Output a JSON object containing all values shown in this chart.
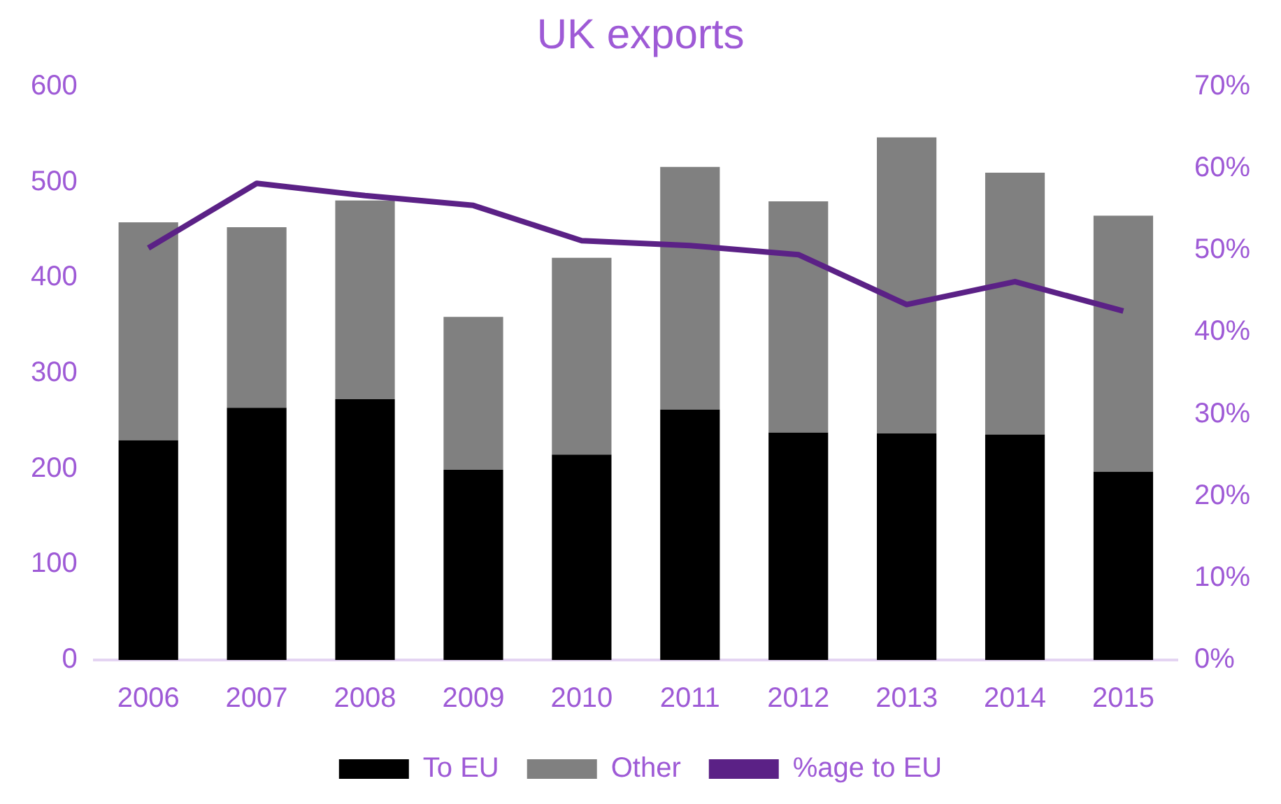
{
  "chart_data": {
    "type": "bar",
    "title": "UK exports",
    "stacked": true,
    "legend": "bottom",
    "grid": false,
    "categories": [
      "2006",
      "2007",
      "2008",
      "2009",
      "2010",
      "2011",
      "2012",
      "2013",
      "2014",
      "2015"
    ],
    "series": [
      {
        "name": "To EU",
        "color": "#000000",
        "values": [
          230,
          264,
          273,
          199,
          215,
          262,
          238,
          237,
          236,
          197
        ]
      },
      {
        "name": "Other",
        "color": "#808080",
        "values": [
          228,
          189,
          208,
          160,
          206,
          254,
          242,
          310,
          274,
          268
        ]
      },
      {
        "name": "%age to EU",
        "type": "line",
        "axis": "y2",
        "color": "#5b2186",
        "marker": "none",
        "values": [
          50.3,
          58.2,
          56.7,
          55.5,
          51.2,
          50.6,
          49.5,
          43.4,
          46.2,
          42.6
        ]
      }
    ],
    "ylim": [
      0,
      600
    ],
    "yticks": [
      0,
      100,
      200,
      300,
      400,
      500,
      600
    ],
    "y2lim": [
      0,
      70
    ],
    "y2ticks": [
      {
        "value": 0,
        "label": "0%"
      },
      {
        "value": 10,
        "label": "10%"
      },
      {
        "value": 20,
        "label": "20%"
      },
      {
        "value": 30,
        "label": "30%"
      },
      {
        "value": 40,
        "label": "40%"
      },
      {
        "value": 50,
        "label": "50%"
      },
      {
        "value": 60,
        "label": "60%"
      },
      {
        "value": 70,
        "label": "70%"
      }
    ]
  }
}
